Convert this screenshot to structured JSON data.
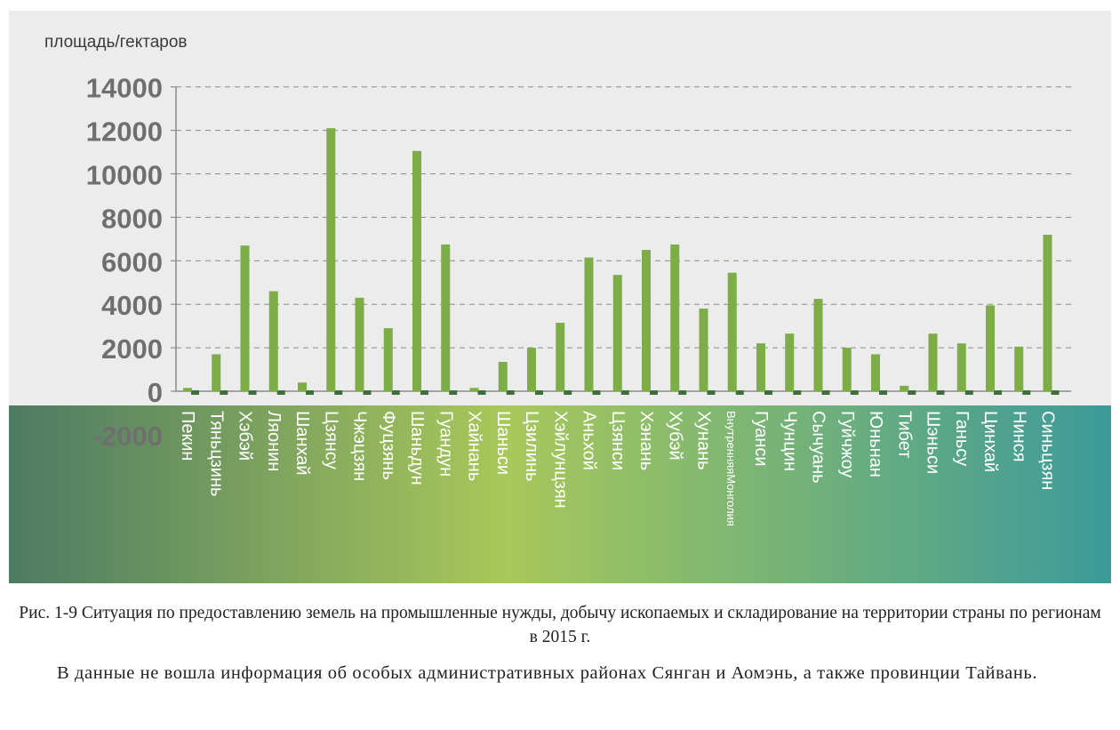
{
  "colors": {
    "panel_top": "#ececec",
    "band_left": "#4e7a63",
    "band_center": "#a8c85a",
    "band_right": "#3c9a9a",
    "bar": "#7cad46",
    "bar_shadow": "#3d6f3a",
    "tick_text": "#6f6f6f",
    "axis": "#8a8a8a",
    "grid": "#8a8a8a"
  },
  "chart_data": {
    "type": "bar",
    "ylabel": "площадь/гектаров",
    "ylim": [
      -2000,
      14000
    ],
    "yticks": [
      -2000,
      0,
      2000,
      4000,
      6000,
      8000,
      10000,
      12000,
      14000
    ],
    "grid": "horizontal dashed",
    "categories": [
      "Пекин",
      "Тяньцзинь",
      "Хэбэй",
      "Ляонин",
      "Шанхай",
      "Цзянсу",
      "Чжэцзян",
      "Фуцзянь",
      "Шаньдун",
      "Гуандун",
      "Хайнань",
      "Шаньси",
      "Цзилинь",
      "Хэйлунцзян",
      "Аньхой",
      "Цзянси",
      "Хэнань",
      "Хубэй",
      "Хунань",
      "ВнутренняяМонголия",
      "Гуанси",
      "Чунцин",
      "Сычуань",
      "Гуйчжоу",
      "Юньнан",
      "Тибет",
      "Шэньси",
      "Ганьсу",
      "Цинхай",
      "Нинся",
      "Синьцзян"
    ],
    "values": [
      150,
      1700,
      6700,
      4600,
      400,
      12100,
      4300,
      2900,
      11050,
      6750,
      150,
      1350,
      2000,
      3150,
      6150,
      5350,
      6500,
      6750,
      3800,
      5450,
      2200,
      2650,
      4250,
      2000,
      1700,
      250,
      2650,
      2200,
      3950,
      2050,
      7200
    ]
  },
  "caption": "Рис. 1-9 Ситуация по предоставлению земель на промышленные нужды, добычу ископаемых и складирование на территории страны по регионам в 2015 г.",
  "note": "В данные не вошла информация об особых административных районах Сянган и Аомэнь, а также провинции Тайвань."
}
